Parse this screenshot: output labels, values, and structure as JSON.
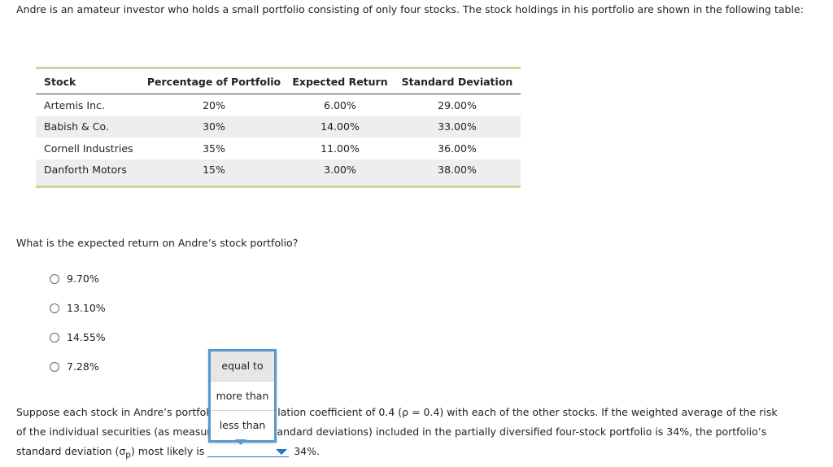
{
  "intro_text": "Andre is an amateur investor who holds a small portfolio consisting of only four stocks. The stock holdings in his portfolio are shown in the following table:",
  "table": {
    "headers": [
      "Stock",
      "Percentage of Portfolio",
      "Expected Return",
      "Standard Deviation"
    ],
    "rows": [
      [
        "Artemis Inc.",
        "20%",
        "6.00%",
        "29.00%"
      ],
      [
        "Babish & Co.",
        "30%",
        "14.00%",
        "33.00%"
      ],
      [
        "Cornell Industries",
        "35%",
        "11.00%",
        "36.00%"
      ],
      [
        "Danforth Motors",
        "15%",
        "3.00%",
        "38.00%"
      ]
    ]
  },
  "question": "What is the expected return on Andre’s stock portfolio?",
  "options": [
    "9.70%",
    "13.10%",
    "14.55%",
    "7.28%"
  ],
  "paragraph": {
    "line1_a": "Suppose each stock in Andre’s portfoli",
    "line1_b": "lation coefficient of 0.4 (ρ = 0.4) with each of the other stocks. If the weighted average of the risk",
    "line2_a": "of the individual securities (as measur",
    "line2_b": "andard deviations) included in the partially diversified four-stock portfolio is 34%, the portfolio’s",
    "line3": "standard deviation (σ",
    "line3_sub": "p",
    "line3_b": ") most likely is",
    "after_dropdown": "34%."
  },
  "dropdown": {
    "items": [
      "equal to",
      "more than",
      "less than"
    ],
    "selected_value": ""
  },
  "colors": {
    "table_rule": "#d8cfa0",
    "row_shade": "#eeeeee",
    "dropdown_border": "#5a97cc",
    "dropdown_line": "#1f78c8"
  }
}
